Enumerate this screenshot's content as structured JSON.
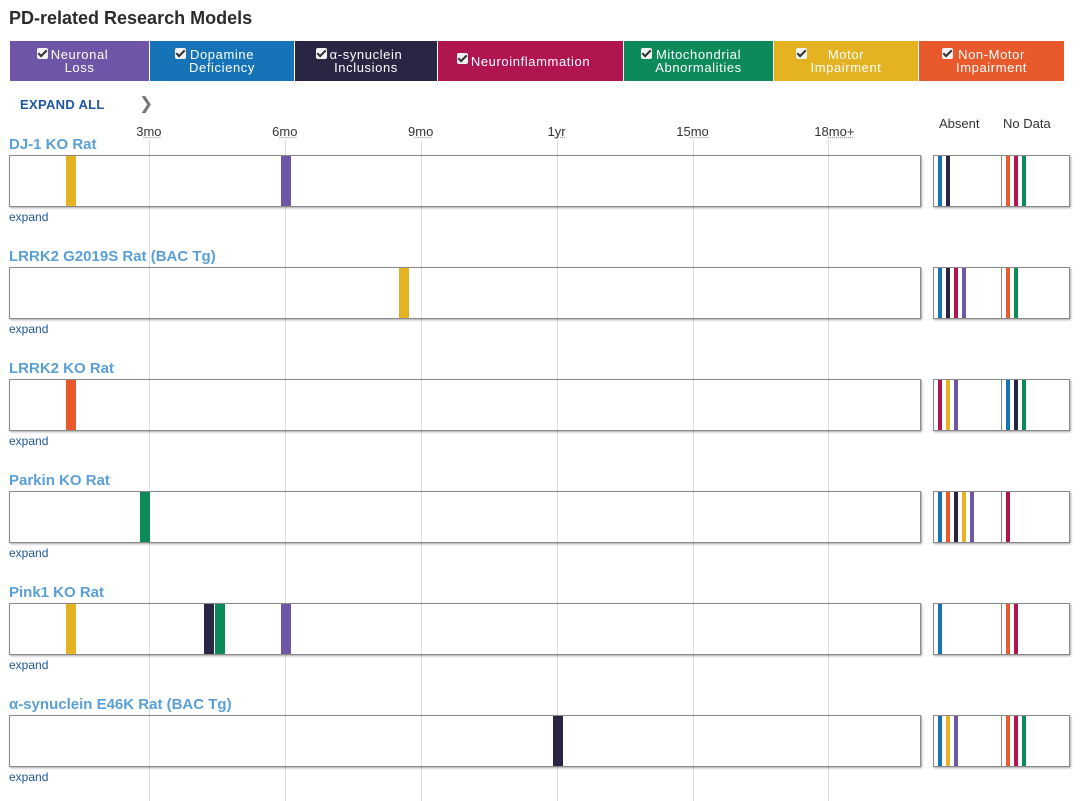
{
  "page": {
    "title": "PD-related Research Models"
  },
  "colors": {
    "neuronal": "#6f55a8",
    "dopamine": "#1673b8",
    "synuclein": "#282643",
    "inflammation": "#b0154f",
    "mito": "#0d8a5a",
    "motor": "#e5b221",
    "nonmotor": "#e8592c"
  },
  "legend": [
    {
      "key": "neuronal",
      "line1": "Neuronal",
      "line2": "Loss"
    },
    {
      "key": "dopamine",
      "line1": "Dopamine",
      "line2": "Deficiency"
    },
    {
      "key": "synuclein",
      "line1": "α-synuclein",
      "line2": "Inclusions"
    },
    {
      "key": "inflammation",
      "line1": "Neuroinflammation",
      "line2": ""
    },
    {
      "key": "mito",
      "line1": "Mitochondrial",
      "line2": "Abnormalities"
    },
    {
      "key": "motor",
      "line1": "Motor",
      "line2": "Impairment"
    },
    {
      "key": "nonmotor",
      "line1": "Non-Motor",
      "line2": "Impairment"
    }
  ],
  "controls": {
    "expand_all": "EXPAND ALL",
    "chevron": "❯",
    "expand": "expand"
  },
  "axis": {
    "min_months": 0,
    "max_months": 20,
    "ticks": [
      {
        "months": 3,
        "num": "3",
        "unit": "mo"
      },
      {
        "months": 6,
        "num": "6",
        "unit": "mo"
      },
      {
        "months": 9,
        "num": "9",
        "unit": "mo"
      },
      {
        "months": 12,
        "num": "1",
        "unit": "yr"
      },
      {
        "months": 15,
        "num": "15",
        "unit": "mo"
      },
      {
        "months": 18,
        "num": "18",
        "unit": "mo+"
      }
    ],
    "absent_label": "Absent",
    "nodata_label": "No Data"
  },
  "models": [
    {
      "name": "DJ-1 KO Rat",
      "events": [
        {
          "months": 1.25,
          "key": "motor"
        },
        {
          "months": 6,
          "key": "neuronal"
        }
      ],
      "absent": [
        "dopamine",
        "synuclein"
      ],
      "nodata": [
        "nonmotor",
        "inflammation",
        "mito"
      ]
    },
    {
      "name": "LRRK2 G2019S Rat (BAC Tg)",
      "events": [
        {
          "months": 8.6,
          "key": "motor"
        }
      ],
      "absent": [
        "dopamine",
        "synuclein",
        "inflammation",
        "neuronal"
      ],
      "nodata": [
        "nonmotor",
        "mito"
      ]
    },
    {
      "name": "LRRK2 KO Rat",
      "events": [
        {
          "months": 1.25,
          "key": "nonmotor"
        }
      ],
      "absent": [
        "inflammation",
        "motor",
        "neuronal"
      ],
      "nodata": [
        "dopamine",
        "synuclein",
        "mito"
      ]
    },
    {
      "name": "Parkin KO Rat",
      "events": [
        {
          "months": 2.9,
          "key": "mito"
        }
      ],
      "absent": [
        "dopamine",
        "nonmotor",
        "synuclein",
        "motor",
        "neuronal"
      ],
      "nodata": [
        "inflammation"
      ]
    },
    {
      "name": "Pink1 KO Rat",
      "events": [
        {
          "months": 1.25,
          "key": "motor"
        },
        {
          "months": 4.3,
          "key": "synuclein"
        },
        {
          "months": 4.55,
          "key": "mito"
        },
        {
          "months": 6,
          "key": "neuronal"
        }
      ],
      "absent": [
        "dopamine"
      ],
      "nodata": [
        "nonmotor",
        "inflammation"
      ]
    },
    {
      "name": "α-synuclein E46K Rat (BAC Tg)",
      "events": [
        {
          "months": 12,
          "key": "synuclein"
        }
      ],
      "absent": [
        "dopamine",
        "motor",
        "neuronal"
      ],
      "nodata": [
        "nonmotor",
        "inflammation",
        "mito"
      ]
    }
  ]
}
